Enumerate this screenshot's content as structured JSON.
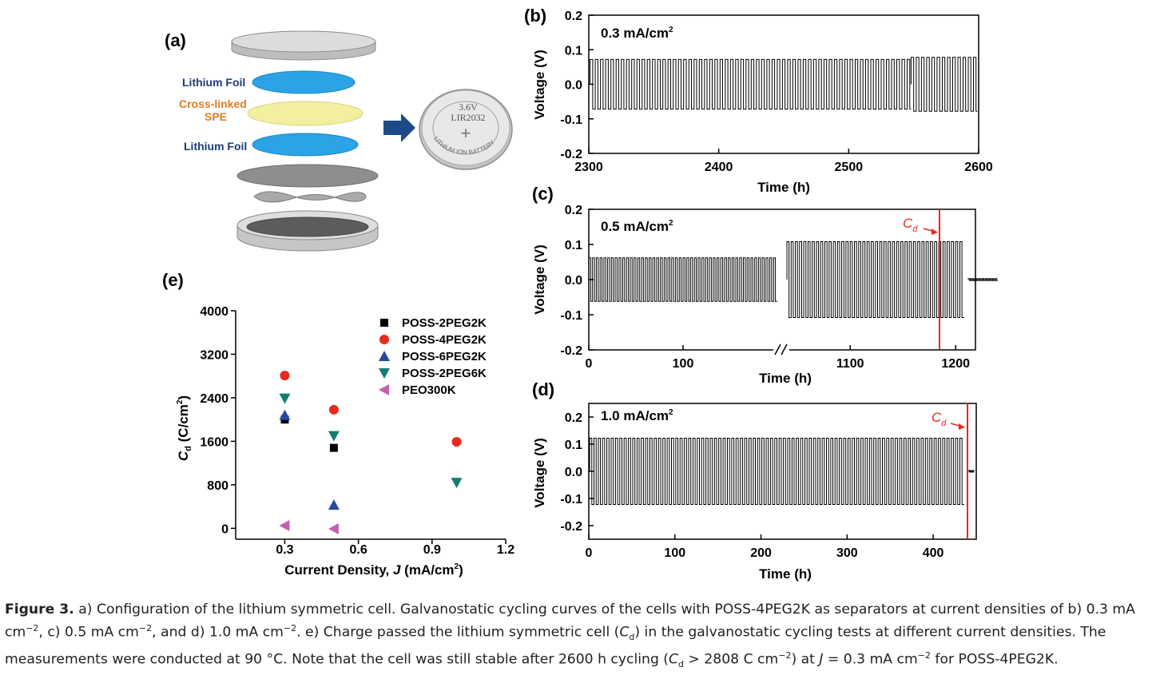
{
  "figure": {
    "panel_labels": {
      "a": "(a)",
      "b": "(b)",
      "c": "(c)",
      "d": "(d)",
      "e": "(e)"
    },
    "diagram": {
      "lithium_foil_top": "Lithium Foil",
      "spe_line1": "Cross-linked",
      "spe_line2": "SPE",
      "lithium_foil_bottom": "Lithium Foil",
      "battery_voltage": "3.6V",
      "battery_model": "LIR2032",
      "battery_ring": "LITHIUM ION BATTERY",
      "battery_sign": "+"
    },
    "colors": {
      "black": "#000000",
      "red": "#e8291c",
      "blue": "#27489f",
      "teal": "#137d73",
      "magenta": "#c560b0",
      "foil_blue": "#2ba3e6",
      "spe_yellow": "#f2ef9f",
      "label_navy": "#1f3a7a",
      "label_orange": "#e07b1f",
      "arrow_navy": "#1d4a86",
      "metal_gray": "#cfcfcf"
    }
  },
  "chart_data": [
    {
      "id": "b",
      "type": "line",
      "annotation": "0.3 mA/cm",
      "annotation_sup": "2",
      "xlabel": "Time (h)",
      "ylabel": "Voltage (V)",
      "xlim": [
        2300,
        2600
      ],
      "ylim": [
        -0.2,
        0.2
      ],
      "xticks": [
        2300,
        2400,
        2500,
        2600
      ],
      "xtick_labels": [
        "2300",
        "2400",
        "2500",
        "2600"
      ],
      "yticks": [
        -0.2,
        -0.1,
        0.0,
        0.1,
        0.2
      ],
      "ytick_labels": [
        "-0.2",
        "-0.1",
        "0.0",
        "0.1",
        "0.2"
      ],
      "series": [
        {
          "segments": [
            {
              "t_start": 2301,
              "t_end": 2548,
              "amplitude": 0.072,
              "half_period_h": 2.0
            },
            {
              "t_start": 2548,
              "t_end": 2599,
              "amplitude": 0.078,
              "half_period_h": 2.0
            }
          ]
        }
      ]
    },
    {
      "id": "c",
      "type": "line",
      "annotation": "0.5 mA/cm",
      "annotation_sup": "2",
      "xlabel": "Time (h)",
      "ylabel": "Voltage (V)",
      "ylim": [
        -0.2,
        0.2
      ],
      "x_break": "//",
      "xticks": [
        0,
        100,
        1100,
        1200
      ],
      "xtick_labels": [
        "0",
        "100",
        "1100",
        "1200"
      ],
      "yticks": [
        -0.2,
        -0.1,
        0.0,
        0.1,
        0.2
      ],
      "ytick_labels": [
        "-0.2",
        "-0.1",
        "0.0",
        "0.1",
        "0.2"
      ],
      "failure_time_h": 1210,
      "failure_label": "C",
      "failure_label_sub": "d",
      "series": [
        {
          "segments": [
            {
              "t_start": 0,
              "t_end": 200,
              "amplitude": 0.062,
              "half_period_h": 2.0
            },
            {
              "t_start": 1040,
              "t_end": 1208,
              "amplitude": 0.108,
              "half_period_h": 2.0
            },
            {
              "t_start": 1212,
              "t_end": 1240,
              "amplitude": 0.003,
              "half_period_h": 1.0
            }
          ]
        }
      ]
    },
    {
      "id": "d",
      "type": "line",
      "annotation": "1.0 mA/cm",
      "annotation_sup": "2",
      "xlabel": "Time (h)",
      "ylabel": "Voltage (V)",
      "xlim": [
        0,
        450
      ],
      "ylim": [
        -0.25,
        0.25
      ],
      "xticks": [
        0,
        100,
        200,
        300,
        400
      ],
      "xtick_labels": [
        "0",
        "100",
        "200",
        "300",
        "400"
      ],
      "yticks": [
        -0.2,
        -0.1,
        0.0,
        0.1,
        0.2
      ],
      "ytick_labels": [
        "-0.2",
        "-0.1",
        "0.0",
        "0.1",
        "0.2"
      ],
      "failure_time_h": 440,
      "failure_label": "C",
      "failure_label_sub": "d",
      "series": [
        {
          "segments": [
            {
              "t_start": 1,
              "t_end": 436,
              "amplitude": 0.122,
              "half_period_h": 2.5
            },
            {
              "t_start": 441,
              "t_end": 448,
              "amplitude": 0.003,
              "half_period_h": 1.0
            }
          ]
        }
      ]
    },
    {
      "id": "e",
      "type": "scatter",
      "xlabel": "Current Density, ",
      "xlabel_italic": "J",
      "xlabel_unit": " (mA/cm",
      "xlabel_sup": "2",
      "xlabel_close": ")",
      "ylabel": "C",
      "ylabel_sub": "d",
      "ylabel_unit": " (C/cm",
      "ylabel_sup": "2",
      "ylabel_close": ")",
      "xlim": [
        0.1,
        1.2
      ],
      "ylim": [
        -200,
        4000
      ],
      "xticks": [
        0.3,
        0.6,
        0.9,
        1.2
      ],
      "xtick_labels": [
        "0.3",
        "0.6",
        "0.9",
        "1.2"
      ],
      "yticks": [
        0,
        800,
        1600,
        2400,
        3200,
        4000
      ],
      "ytick_labels": [
        "0",
        "800",
        "1600",
        "2400",
        "3200",
        "4000"
      ],
      "legend_position": "top-right",
      "series": [
        {
          "name": "POSS-2PEG2K",
          "marker": "square",
          "color": "#000000",
          "points": [
            [
              0.3,
              2000
            ],
            [
              0.5,
              1480
            ]
          ]
        },
        {
          "name": "POSS-4PEG2K",
          "marker": "circle",
          "color": "#e8291c",
          "points": [
            [
              0.3,
              2808
            ],
            [
              0.5,
              2180
            ],
            [
              1.0,
              1590
            ]
          ]
        },
        {
          "name": "POSS-6PEG2K",
          "marker": "triangle-up",
          "color": "#27489f",
          "points": [
            [
              0.3,
              2080
            ],
            [
              0.5,
              430
            ]
          ]
        },
        {
          "name": "POSS-2PEG6K",
          "marker": "triangle-down",
          "color": "#137d73",
          "points": [
            [
              0.3,
              2390
            ],
            [
              0.5,
              1700
            ],
            [
              1.0,
              840
            ]
          ]
        },
        {
          "name": "PEO300K",
          "marker": "triangle-left",
          "color": "#c560b0",
          "points": [
            [
              0.3,
              50
            ],
            [
              0.5,
              -10
            ]
          ]
        }
      ]
    }
  ],
  "caption": {
    "label": "Figure 3.",
    "text_parts": [
      "  a) Configuration of the lithium symmetric cell. Galvanostatic cycling curves of the cells with POSS-4PEG2K as separators at current densities of b) 0.3 mA cm",
      "−2",
      ", c) 0.5 mA cm",
      "−2",
      ", and d) 1.0 mA cm",
      "−2",
      ". e) Charge passed the lithium symmetric cell (",
      "C",
      "d",
      ") in the galvanostatic cycling tests at different current densities. The measurements were conducted at 90 °C. Note that the cell was still stable after 2600 h cycling (",
      "C",
      "d",
      " > 2808 C cm",
      "−2",
      ") at ",
      "J",
      " = 0.3 mA cm",
      "−2",
      " for POSS-4PEG2K."
    ]
  }
}
